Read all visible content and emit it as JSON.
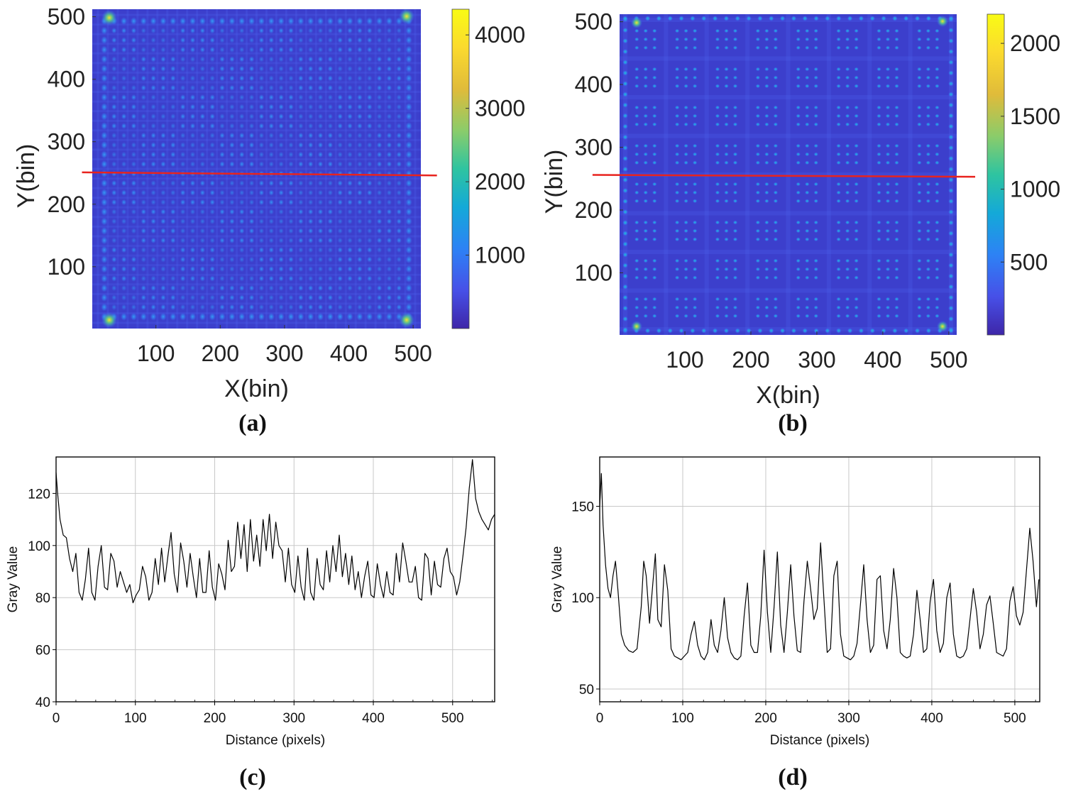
{
  "panel_labels": [
    "(a)",
    "(b)",
    "(c)",
    "(d)"
  ],
  "chart_data": [
    {
      "id": "a",
      "type": "heatmap",
      "xlabel": "X(bin)",
      "ylabel": "Y(bin)",
      "xlim": [
        1,
        512
      ],
      "ylim": [
        1,
        512
      ],
      "xticks": [
        100,
        200,
        300,
        400,
        500
      ],
      "yticks": [
        100,
        200,
        300,
        400,
        500
      ],
      "colorbar_range": [
        0,
        4350
      ],
      "colorbar_ticks": [
        1000,
        2000,
        3000,
        4000
      ],
      "colormap": [
        "#3e26a8",
        "#4750e8",
        "#2d82f5",
        "#14a9d8",
        "#2ec4a0",
        "#8bcc6a",
        "#e0bb3a",
        "#fbda2e",
        "#f9fb15"
      ],
      "spot_grid": {
        "rows": 32,
        "cols": 32
      },
      "profile_line": {
        "x": [
          -15,
          537
        ],
        "y": [
          251,
          246
        ],
        "color": "#e8231e"
      }
    },
    {
      "id": "b",
      "type": "heatmap",
      "xlabel": "X(bin)",
      "ylabel": "Y(bin)",
      "xlim": [
        1,
        512
      ],
      "ylim": [
        1,
        512
      ],
      "xticks": [
        100,
        200,
        300,
        400,
        500
      ],
      "yticks": [
        100,
        200,
        300,
        400,
        500
      ],
      "colorbar_range": [
        0,
        2200
      ],
      "colorbar_ticks": [
        500,
        1000,
        1500,
        2000
      ],
      "colormap": [
        "#3e26a8",
        "#4750e8",
        "#2d82f5",
        "#14a9d8",
        "#2ec4a0",
        "#8bcc6a",
        "#e0bb3a",
        "#fbda2e",
        "#f9fb15"
      ],
      "spot_grid": {
        "blocks": 8,
        "per_block": 3
      },
      "profile_line": {
        "x": [
          -40,
          540
        ],
        "y": [
          256,
          253
        ],
        "color": "#e8231e"
      }
    },
    {
      "id": "c",
      "type": "line",
      "xlabel": "Distance (pixels)",
      "ylabel": "Gray Value",
      "xlim": [
        0,
        553
      ],
      "ylim": [
        40,
        134
      ],
      "xticks": [
        0,
        100,
        200,
        300,
        400,
        500
      ],
      "yticks": [
        40,
        60,
        80,
        100,
        120
      ],
      "grid": true,
      "series": [
        {
          "x": [
            0,
            2,
            5,
            9,
            13,
            17,
            21,
            25,
            29,
            33,
            37,
            41,
            45,
            49,
            53,
            57,
            61,
            65,
            69,
            73,
            77,
            81,
            85,
            89,
            93,
            97,
            101,
            105,
            109,
            113,
            117,
            121,
            125,
            129,
            133,
            137,
            141,
            145,
            149,
            153,
            157,
            161,
            165,
            169,
            173,
            177,
            181,
            185,
            189,
            193,
            197,
            201,
            205,
            209,
            213,
            217,
            221,
            225,
            229,
            233,
            237,
            241,
            245,
            249,
            253,
            257,
            261,
            265,
            269,
            273,
            277,
            281,
            285,
            289,
            293,
            297,
            301,
            305,
            309,
            313,
            317,
            321,
            325,
            329,
            333,
            337,
            341,
            345,
            349,
            353,
            357,
            361,
            365,
            369,
            373,
            377,
            381,
            385,
            389,
            393,
            397,
            401,
            405,
            409,
            413,
            417,
            421,
            425,
            429,
            433,
            437,
            441,
            445,
            449,
            453,
            457,
            461,
            465,
            469,
            473,
            477,
            481,
            485,
            489,
            493,
            497,
            501,
            505,
            509,
            513,
            517,
            521,
            525,
            529,
            533,
            537,
            541,
            545,
            549,
            553
          ],
          "y": [
            128,
            120,
            110,
            104,
            103,
            95,
            90,
            97,
            82,
            79,
            87,
            99,
            82,
            79,
            92,
            100,
            84,
            83,
            97,
            94,
            84,
            90,
            86,
            82,
            85,
            78,
            81,
            83,
            92,
            88,
            79,
            82,
            95,
            85,
            99,
            86,
            96,
            105,
            89,
            82,
            101,
            94,
            84,
            97,
            88,
            80,
            95,
            82,
            82,
            98,
            84,
            79,
            93,
            89,
            83,
            102,
            90,
            92,
            109,
            95,
            108,
            90,
            110,
            94,
            104,
            92,
            110,
            98,
            112,
            95,
            109,
            100,
            98,
            86,
            99,
            85,
            82,
            96,
            84,
            79,
            99,
            82,
            79,
            95,
            85,
            83,
            98,
            86,
            100,
            90,
            104,
            88,
            97,
            85,
            96,
            83,
            90,
            80,
            88,
            94,
            81,
            80,
            93,
            85,
            80,
            90,
            82,
            81,
            97,
            86,
            101,
            94,
            86,
            86,
            92,
            80,
            79,
            97,
            95,
            81,
            94,
            85,
            84,
            95,
            99,
            90,
            88,
            81,
            86,
            96,
            107,
            122,
            133,
            118,
            113,
            110,
            108,
            106,
            110,
            112
          ],
          "color": "#000000"
        }
      ]
    },
    {
      "id": "d",
      "type": "line",
      "xlabel": "Distance (pixels)",
      "ylabel": "Gray Value",
      "xlim": [
        0,
        530
      ],
      "ylim": [
        43,
        177
      ],
      "xticks": [
        0,
        100,
        200,
        300,
        400,
        500
      ],
      "yticks": [
        50,
        100,
        150
      ],
      "grid": true,
      "series": [
        {
          "x": [
            0,
            2,
            4,
            7,
            10,
            13,
            16,
            19,
            22,
            26,
            30,
            35,
            40,
            45,
            50,
            53,
            56,
            60,
            64,
            67,
            70,
            74,
            78,
            82,
            86,
            90,
            94,
            98,
            102,
            106,
            110,
            114,
            118,
            122,
            126,
            130,
            134,
            138,
            142,
            146,
            150,
            154,
            158,
            162,
            166,
            170,
            174,
            178,
            182,
            186,
            190,
            194,
            198,
            202,
            206,
            210,
            214,
            218,
            222,
            226,
            230,
            234,
            238,
            242,
            246,
            250,
            254,
            258,
            262,
            266,
            270,
            274,
            278,
            282,
            286,
            290,
            294,
            298,
            302,
            306,
            310,
            314,
            318,
            322,
            326,
            330,
            334,
            338,
            342,
            346,
            350,
            354,
            358,
            362,
            366,
            370,
            374,
            378,
            382,
            386,
            390,
            394,
            398,
            402,
            406,
            410,
            414,
            418,
            422,
            426,
            430,
            434,
            438,
            442,
            446,
            450,
            454,
            458,
            462,
            466,
            470,
            474,
            478,
            482,
            486,
            490,
            494,
            498,
            502,
            506,
            510,
            514,
            518,
            522,
            526,
            529
          ],
          "y": [
            150,
            168,
            140,
            118,
            105,
            100,
            112,
            120,
            104,
            80,
            74,
            71,
            70,
            72,
            95,
            120,
            112,
            86,
            108,
            124,
            88,
            84,
            118,
            104,
            72,
            68,
            67,
            66,
            68,
            70,
            80,
            87,
            74,
            68,
            66,
            70,
            88,
            74,
            70,
            82,
            100,
            78,
            70,
            67,
            66,
            68,
            90,
            108,
            74,
            70,
            70,
            90,
            126,
            92,
            70,
            95,
            125,
            85,
            70,
            92,
            118,
            90,
            71,
            70,
            98,
            120,
            105,
            88,
            94,
            130,
            100,
            70,
            72,
            112,
            120,
            80,
            68,
            67,
            66,
            68,
            75,
            96,
            118,
            88,
            70,
            74,
            110,
            112,
            82,
            72,
            88,
            116,
            100,
            70,
            68,
            67,
            68,
            80,
            104,
            88,
            70,
            72,
            98,
            110,
            82,
            70,
            75,
            100,
            108,
            80,
            68,
            67,
            68,
            72,
            88,
            105,
            92,
            72,
            80,
            96,
            101,
            86,
            70,
            69,
            68,
            72,
            98,
            106,
            90,
            85,
            92,
            115,
            138,
            120,
            95,
            110
          ],
          "color": "#000000"
        }
      ]
    }
  ]
}
